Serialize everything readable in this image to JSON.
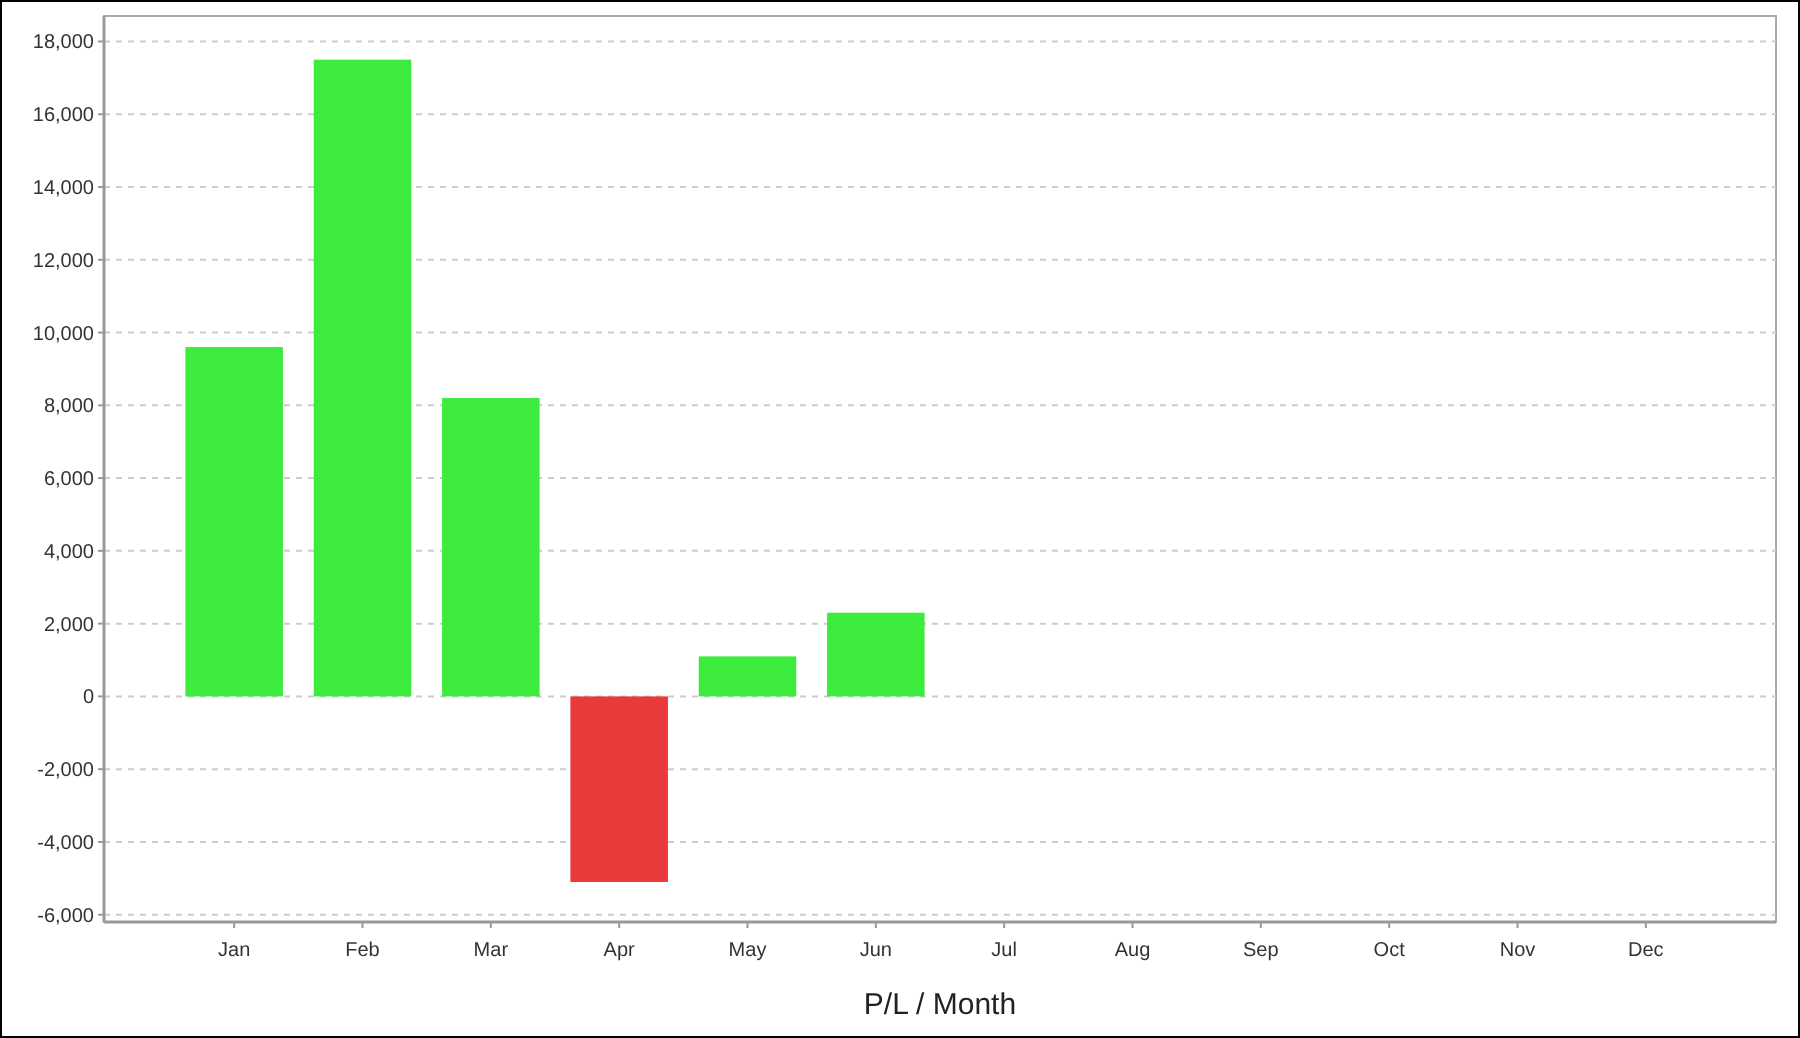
{
  "chart_data": {
    "type": "bar",
    "xlabel": "P/L / Month",
    "categories": [
      "Jan",
      "Feb",
      "Mar",
      "Apr",
      "May",
      "Jun",
      "Jul",
      "Aug",
      "Sep",
      "Oct",
      "Nov",
      "Dec"
    ],
    "values": [
      9600,
      17500,
      8200,
      -5100,
      1100,
      2300,
      null,
      null,
      null,
      null,
      null,
      null
    ],
    "colors": [
      "#3deb3d",
      "#3deb3d",
      "#3deb3d",
      "#e8393b",
      "#3deb3d",
      "#3deb3d",
      null,
      null,
      null,
      null,
      null,
      null
    ],
    "ylim": [
      -6200,
      18700
    ],
    "yticks": [
      {
        "value": -6000,
        "label": "-6,000"
      },
      {
        "value": -4000,
        "label": "-4,000"
      },
      {
        "value": -2000,
        "label": "-2,000"
      },
      0,
      {
        "value": 2000,
        "label": "2,000"
      },
      {
        "value": 4000,
        "label": "4,000"
      },
      {
        "value": 6000,
        "label": "6,000"
      },
      {
        "value": 8000,
        "label": "8,000"
      },
      {
        "value": 10000,
        "label": "10,000"
      },
      {
        "value": 12000,
        "label": "12,000"
      },
      {
        "value": 14000,
        "label": "14,000"
      },
      {
        "value": 16000,
        "label": "16,000"
      },
      {
        "value": 18000,
        "label": "18,000"
      }
    ],
    "grid": "y"
  }
}
